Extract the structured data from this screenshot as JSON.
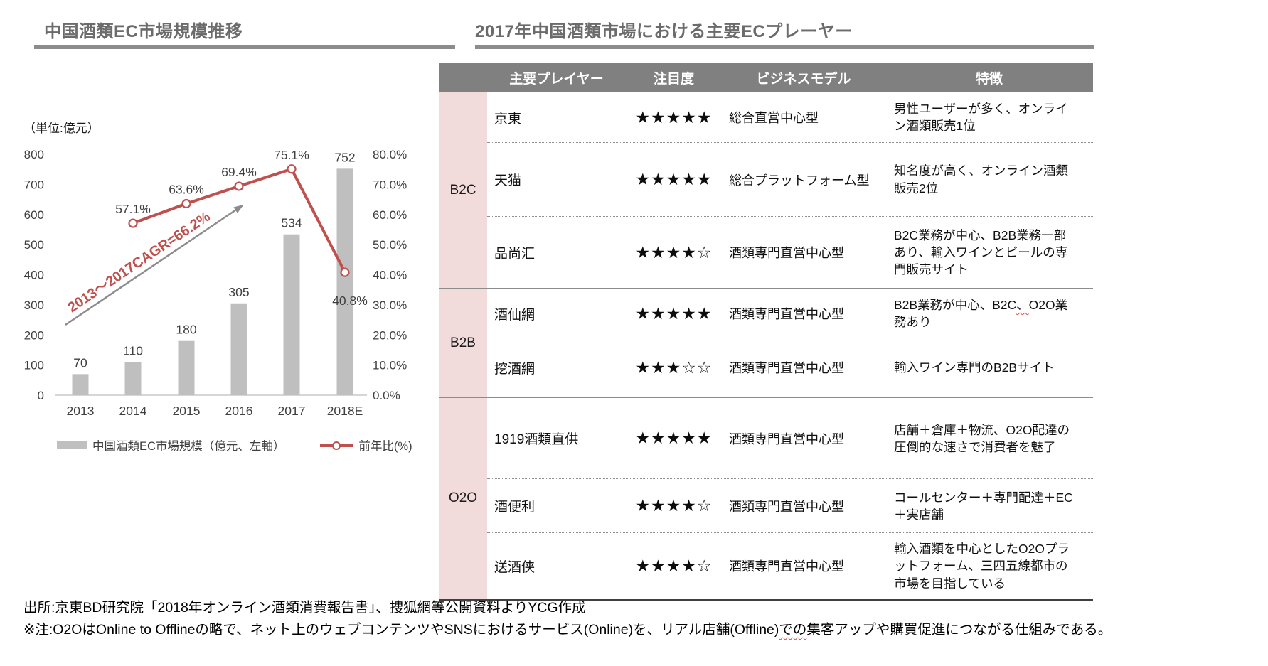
{
  "left_panel": {
    "title": "中国酒類EC市場規模推移",
    "unit_label": "（単位:億元）"
  },
  "chart_data": {
    "type": "bar+line",
    "categories": [
      "2013",
      "2014",
      "2015",
      "2016",
      "2017",
      "2018E"
    ],
    "series": [
      {
        "name": "中国酒類EC市場規模（億元、左軸）",
        "type": "bar",
        "axis": "left",
        "color": "#bfbfbf",
        "values": [
          70,
          110,
          180,
          305,
          534,
          752
        ]
      },
      {
        "name": "前年比(%)",
        "type": "line",
        "axis": "right",
        "color": "#c0504d",
        "values": [
          null,
          57.1,
          63.6,
          69.4,
          75.1,
          40.8
        ],
        "point_labels": [
          "",
          "57.1%",
          "63.6%",
          "69.4%",
          "75.1%",
          "40.8%"
        ]
      }
    ],
    "left_axis": {
      "min": 0,
      "max": 800,
      "step": 100,
      "ticks": [
        "0",
        "100",
        "200",
        "300",
        "400",
        "500",
        "600",
        "700",
        "800"
      ]
    },
    "right_axis": {
      "min": 0,
      "max": 80,
      "step": 10,
      "ticks": [
        "0.0%",
        "10.0%",
        "20.0%",
        "30.0%",
        "40.0%",
        "50.0%",
        "60.0%",
        "70.0%",
        "80.0%"
      ]
    },
    "annotation": {
      "text": "2013～2017CAGR=66.2%",
      "color": "#c0504d",
      "arrow_color": "#8c8c8c"
    },
    "grid": false,
    "legend_position": "bottom",
    "legend": [
      {
        "label": "中国酒類EC市場規模（億元、左軸）",
        "swatch": "bar",
        "color": "#bfbfbf"
      },
      {
        "label": "前年比(%)",
        "swatch": "line",
        "color": "#c0504d"
      }
    ]
  },
  "right_panel": {
    "title": "2017年中国酒類市場における主要ECプレーヤー",
    "table": {
      "headers": [
        "主要プレイヤー",
        "注目度",
        "ビジネスモデル",
        "特徴"
      ],
      "rating_max": 5,
      "groups": [
        {
          "label": "B2C",
          "label_lines": [
            "B2C"
          ],
          "rows": [
            {
              "player": "京東",
              "rating": 5,
              "model": "総合直営中心型",
              "feature": [
                "男性ユーザーが多く、オンライン酒類販売1位"
              ]
            },
            {
              "player": "天猫",
              "rating": 5,
              "model": "総合プラットフォーム型",
              "feature": [
                "知名度が高く、オンライン酒類販売2位"
              ]
            },
            {
              "player": "品尚汇",
              "rating": 4,
              "model": "酒類専門直営中心型",
              "feature": [
                "B2C業務が中心、B2B業務一部あり、輸入ワインとビールの専門販売サイト"
              ]
            }
          ]
        },
        {
          "label": "B2B",
          "label_lines": [
            "B2B"
          ],
          "rows": [
            {
              "player": "酒仙網",
              "rating": 5,
              "model": "酒類専門直営中心型",
              "feature": [
                "B2B業務が中心、B2C",
                {
                  "text": "、",
                  "wavy": true
                },
                "O2O業務あり"
              ]
            },
            {
              "player": "挖酒網",
              "rating": 3,
              "model": "酒類専門直営中心型",
              "feature": [
                "輸入ワイン専門のB2Bサイト"
              ]
            }
          ]
        },
        {
          "label": "O2O",
          "label_lines": [
            "O2",
            "O"
          ],
          "rows": [
            {
              "player": "1919酒類直供",
              "rating": 5,
              "model": "酒類専門直営中心型",
              "feature": [
                "店舗＋倉庫＋物流、O2O配達の圧倒的な速さで消費者を魅了"
              ]
            },
            {
              "player": "酒便利",
              "rating": 4,
              "model": "酒類専門直営中心型",
              "feature": [
                "コールセンター＋専門配達＋EC＋実店舗"
              ]
            },
            {
              "player": "送酒侠",
              "rating": 4,
              "model": "酒類専門直営中心型",
              "feature": [
                "輸入酒類を中心としたO2Oプラットフォーム、三四五線都市の市場を目指している"
              ]
            }
          ]
        }
      ]
    }
  },
  "footer": {
    "source": "出所:京東BD研究院「2018年オンライン酒類消費報告書」、捜狐網等公開資料よりYCG作成",
    "note_parts": [
      "※注:O2OはOnline to Offlineの略で、ネット上のウェブコンテンツやSNSにおけるサービス(Online)を、リアル店舗(Offline)",
      {
        "text": "での",
        "wavy": true
      },
      "集客アップや購買促進につながる仕組みである。"
    ]
  },
  "colors": {
    "header_bg": "#808080",
    "header_text": "#ffffff",
    "group_bg": "#f2dcdb",
    "accent_red": "#c0504d",
    "bar_gray": "#bfbfbf",
    "title_gray": "#6b6b6b",
    "rule_gray": "#8c8c8c",
    "axis_text": "#3f3f3f"
  }
}
